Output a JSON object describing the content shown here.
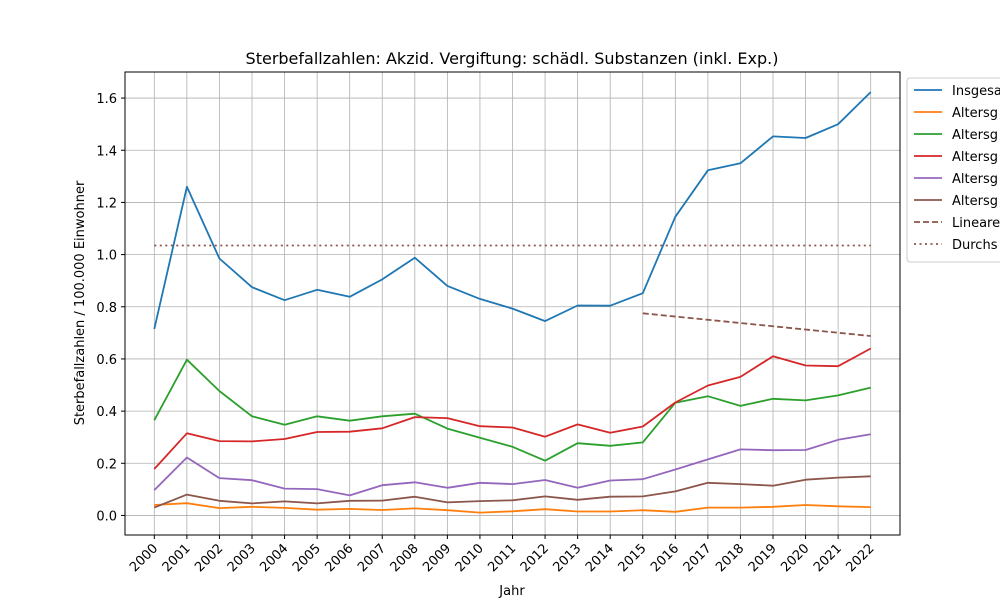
{
  "chart_data": {
    "type": "line",
    "title": "Sterbefallzahlen: Akzid. Vergiftung: schädl. Substanzen (inkl. Exp.)",
    "xlabel": "Jahr",
    "ylabel": "Sterbefallzahlen / 100.000 Einwohner",
    "x": [
      2000,
      2001,
      2002,
      2003,
      2004,
      2005,
      2006,
      2007,
      2008,
      2009,
      2010,
      2011,
      2012,
      2013,
      2014,
      2015,
      2016,
      2017,
      2018,
      2019,
      2020,
      2021,
      2022
    ],
    "xlim": [
      1999.1,
      2022.9
    ],
    "ylim": [
      -0.075,
      1.7
    ],
    "yticks": [
      0.0,
      0.2,
      0.4,
      0.6,
      0.8,
      1.0,
      1.2,
      1.4,
      1.6
    ],
    "grid": true,
    "legend_position": "top-right, outside plot area (clipped)",
    "series": [
      {
        "name": "Insgesa",
        "color": "#1f77b4",
        "style": "solid",
        "values": [
          0.715,
          1.26,
          0.985,
          0.875,
          0.825,
          0.865,
          0.838,
          0.905,
          0.988,
          0.88,
          0.83,
          0.793,
          0.745,
          0.805,
          0.804,
          0.852,
          1.145,
          1.323,
          1.35,
          1.453,
          1.447,
          1.5,
          1.623
        ]
      },
      {
        "name": "Altersg",
        "color": "#ff7f0e",
        "style": "solid",
        "values": [
          0.04,
          0.047,
          0.028,
          0.033,
          0.029,
          0.022,
          0.025,
          0.021,
          0.027,
          0.02,
          0.011,
          0.016,
          0.024,
          0.015,
          0.015,
          0.02,
          0.014,
          0.03,
          0.03,
          0.033,
          0.04,
          0.035,
          0.032
        ]
      },
      {
        "name": "Altersg",
        "color": "#2ca02c",
        "style": "solid",
        "values": [
          0.365,
          0.597,
          0.477,
          0.38,
          0.348,
          0.38,
          0.363,
          0.38,
          0.39,
          0.333,
          0.298,
          0.263,
          0.21,
          0.277,
          0.267,
          0.28,
          0.432,
          0.457,
          0.42,
          0.447,
          0.441,
          0.46,
          0.49
        ]
      },
      {
        "name": "Altersg",
        "color": "#d62728",
        "style": "solid",
        "values": [
          0.178,
          0.315,
          0.285,
          0.284,
          0.293,
          0.32,
          0.321,
          0.334,
          0.377,
          0.373,
          0.342,
          0.337,
          0.302,
          0.349,
          0.317,
          0.341,
          0.433,
          0.498,
          0.531,
          0.61,
          0.575,
          0.572,
          0.64
        ]
      },
      {
        "name": "Altersg",
        "color": "#9467bd",
        "style": "solid",
        "values": [
          0.097,
          0.222,
          0.143,
          0.135,
          0.103,
          0.101,
          0.077,
          0.116,
          0.127,
          0.106,
          0.125,
          0.12,
          0.136,
          0.106,
          0.134,
          0.139,
          0.176,
          0.215,
          0.253,
          0.25,
          0.251,
          0.29,
          0.311
        ]
      },
      {
        "name": "Altersg",
        "color": "#8c564b",
        "style": "solid",
        "values": [
          0.03,
          0.08,
          0.056,
          0.046,
          0.054,
          0.046,
          0.056,
          0.057,
          0.072,
          0.05,
          0.055,
          0.058,
          0.073,
          0.06,
          0.072,
          0.073,
          0.092,
          0.125,
          0.12,
          0.114,
          0.137,
          0.145,
          0.15
        ]
      },
      {
        "name": "Lineare",
        "color": "#8c564b",
        "style": "dashed",
        "x": [
          2015,
          2022
        ],
        "values": [
          0.775,
          0.688
        ]
      },
      {
        "name": "Durchs",
        "color": "#8c564b",
        "style": "dotted",
        "x": [
          2000,
          2022
        ],
        "values": [
          1.035,
          1.035
        ]
      }
    ]
  }
}
